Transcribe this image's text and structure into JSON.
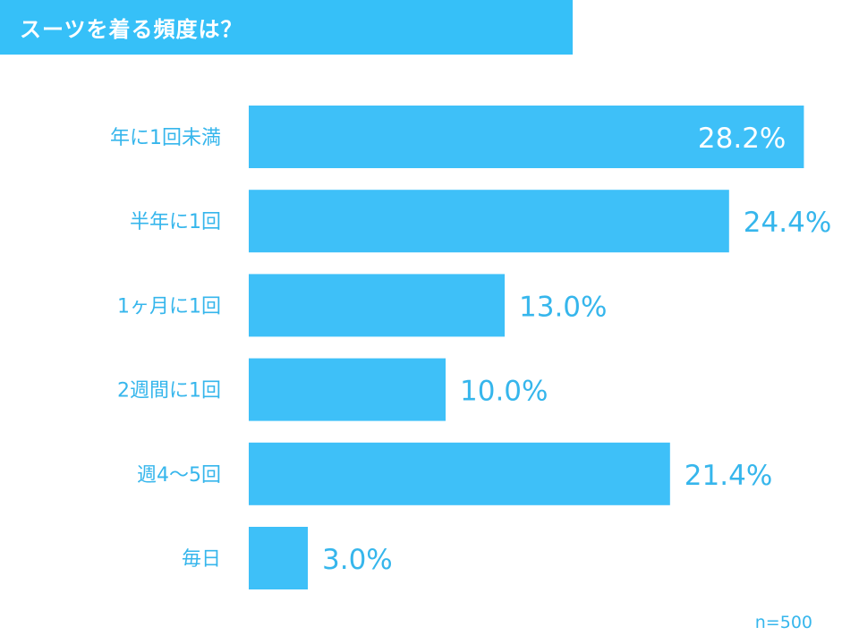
{
  "chart_data": {
    "type": "bar",
    "orientation": "horizontal",
    "title": "スーツを着る頻度は？",
    "categories": [
      "年に1回未満",
      "半年に1回",
      "1ヶ月に1回",
      "2週間に1回",
      "週4～5回",
      "毎日"
    ],
    "values": [
      28.2,
      24.4,
      13.0,
      10.0,
      21.4,
      3.0
    ],
    "data_labels": [
      "28.2%",
      "24.4%",
      "13.0%",
      "10.0%",
      "21.4%",
      "3.0%"
    ],
    "xlim": [
      0,
      30
    ],
    "grid": false,
    "legend": "none",
    "note": "n=500"
  },
  "colors": {
    "bar": "#3ec0f8",
    "title_bg": "#36c0f8",
    "label": "#36b6ec"
  }
}
